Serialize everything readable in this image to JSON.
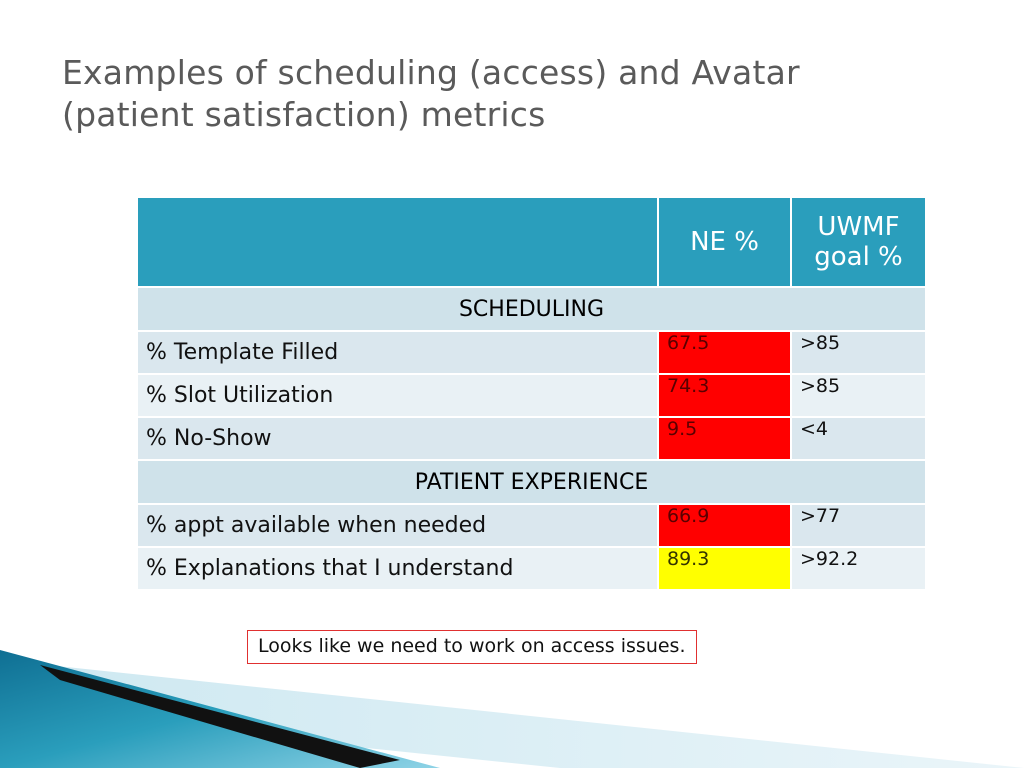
{
  "slide": {
    "title_line1": "Examples of scheduling (access) and Avatar",
    "title_line2": "(patient satisfaction) metrics",
    "note": "Looks like we need to work on access issues."
  },
  "table": {
    "header": {
      "metric": "",
      "ne": "NE %",
      "goal_line1": "UWMF",
      "goal_line2": "goal %"
    },
    "sections": [
      {
        "title": "SCHEDULING",
        "rows": [
          {
            "label": "% Template Filled",
            "ne": "67.5",
            "goal": ">85",
            "status": "red"
          },
          {
            "label": "% Slot Utilization",
            "ne": "74.3",
            "goal": ">85",
            "status": "red"
          },
          {
            "label": "% No-Show",
            "ne": "9.5",
            "goal": "<4",
            "status": "red"
          }
        ]
      },
      {
        "title": "PATIENT EXPERIENCE",
        "rows": [
          {
            "label": "% appt available when needed",
            "ne": "66.9",
            "goal": ">77",
            "status": "red"
          },
          {
            "label": "% Explanations that I understand",
            "ne": "89.3",
            "goal": ">92.2",
            "status": "yellow"
          }
        ]
      }
    ]
  },
  "colors": {
    "header": "#2a9ebc",
    "section": "#cfe2ea",
    "red": "#ff0000",
    "yellow": "#ffff00",
    "title": "#5a5a5a"
  }
}
